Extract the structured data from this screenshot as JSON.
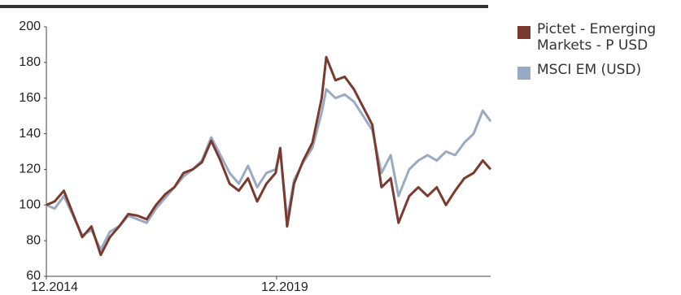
{
  "chart_data": {
    "type": "line",
    "x": [
      2014.92,
      2015.1,
      2015.3,
      2015.5,
      2015.7,
      2015.9,
      2016.1,
      2016.3,
      2016.5,
      2016.7,
      2016.9,
      2017.1,
      2017.3,
      2017.5,
      2017.7,
      2017.9,
      2018.1,
      2018.3,
      2018.5,
      2018.7,
      2018.9,
      2019.1,
      2019.3,
      2019.5,
      2019.7,
      2019.9,
      2020.0,
      2020.15,
      2020.3,
      2020.5,
      2020.7,
      2020.9,
      2021.0,
      2021.2,
      2021.4,
      2021.6,
      2021.8,
      2022.0,
      2022.2,
      2022.4,
      2022.57,
      2022.8,
      2023.0,
      2023.2,
      2023.4,
      2023.6,
      2023.8,
      2024.0,
      2024.2,
      2024.4,
      2024.57
    ],
    "series": [
      {
        "name": "Pictet - Emerging Markets - P USD",
        "color": "#7a3b2e",
        "values": [
          100,
          102,
          108,
          95,
          82,
          88,
          72,
          82,
          88,
          95,
          94,
          92,
          100,
          106,
          110,
          118,
          120,
          124,
          136,
          125,
          112,
          108,
          115,
          102,
          112,
          118,
          132,
          88,
          112,
          125,
          135,
          160,
          183,
          170,
          172,
          165,
          155,
          145,
          110,
          115,
          90,
          105,
          110,
          105,
          110,
          100,
          108,
          115,
          118,
          125,
          120
        ]
      },
      {
        "name": "MSCI EM (USD)",
        "color": "#9aaac4",
        "values": [
          100,
          98,
          105,
          94,
          83,
          86,
          75,
          85,
          88,
          94,
          92,
          90,
          98,
          104,
          110,
          116,
          120,
          125,
          138,
          128,
          118,
          112,
          122,
          110,
          118,
          120,
          130,
          92,
          114,
          124,
          132,
          152,
          165,
          160,
          162,
          158,
          150,
          142,
          118,
          128,
          105,
          120,
          125,
          128,
          125,
          130,
          128,
          135,
          140,
          153,
          147
        ]
      }
    ],
    "xlim": [
      2014.92,
      2024.57
    ],
    "xticks": [
      {
        "value": 2014.92,
        "label": "12.2014"
      },
      {
        "value": 2019.92,
        "label": "12.2019"
      }
    ],
    "ylim": [
      60,
      200
    ],
    "yticks": [
      60,
      80,
      100,
      120,
      140,
      160,
      180,
      200
    ],
    "legend": "right"
  }
}
